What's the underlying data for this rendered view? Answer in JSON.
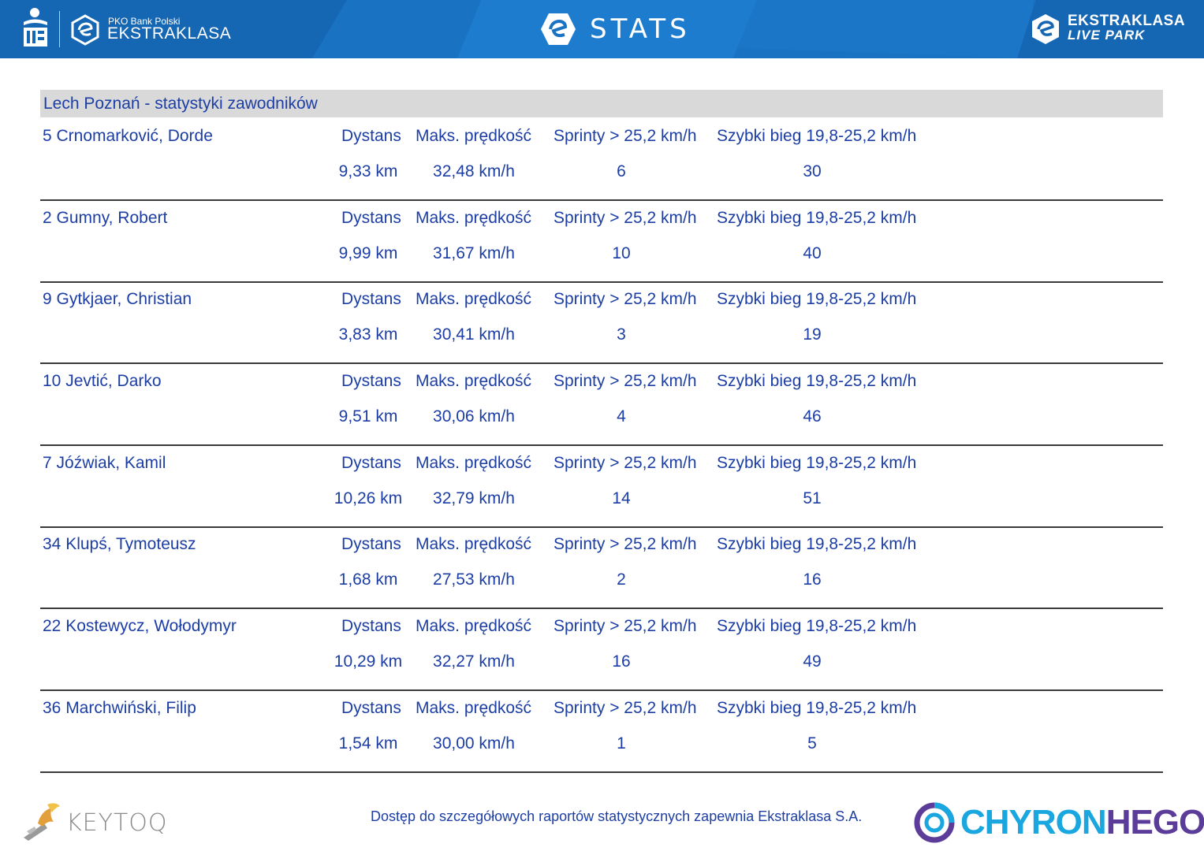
{
  "header": {
    "brand_small": "PKO Bank Polski",
    "brand_big": "EKSTRAKLASA",
    "stats_title": "STATS",
    "live_park_line1": "EKSTRAKLASA",
    "live_park_line2": "LIVE PARK"
  },
  "section_title": "Lech Poznań - statystyki zawodników",
  "column_labels": {
    "distance": "Dystans",
    "max_speed": "Maks. prędkość",
    "sprints": "Sprinty > 25,2 km/h",
    "fast_run": "Szybki bieg 19,8-25,2 km/h"
  },
  "players": [
    {
      "name": "5  Crnomarković, Dorde",
      "distance": "9,33 km",
      "max_speed": "32,48 km/h",
      "sprints": "6",
      "fast_run": "30"
    },
    {
      "name": "2  Gumny, Robert",
      "distance": "9,99 km",
      "max_speed": "31,67 km/h",
      "sprints": "10",
      "fast_run": "40"
    },
    {
      "name": "9  Gytkjaer, Christian",
      "distance": "3,83 km",
      "max_speed": "30,41 km/h",
      "sprints": "3",
      "fast_run": "19"
    },
    {
      "name": "10  Jevtić, Darko",
      "distance": "9,51 km",
      "max_speed": "30,06 km/h",
      "sprints": "4",
      "fast_run": "46"
    },
    {
      "name": "7  Jóźwiak, Kamil",
      "distance": "10,26 km",
      "max_speed": "32,79 km/h",
      "sprints": "14",
      "fast_run": "51"
    },
    {
      "name": "34  Klupś, Tymoteusz",
      "distance": "1,68 km",
      "max_speed": "27,53 km/h",
      "sprints": "2",
      "fast_run": "16"
    },
    {
      "name": "22  Kostewycz, Wołodymyr",
      "distance": "10,29 km",
      "max_speed": "32,27 km/h",
      "sprints": "16",
      "fast_run": "49"
    },
    {
      "name": "36  Marchwiński, Filip",
      "distance": "1,54 km",
      "max_speed": "30,00 km/h",
      "sprints": "1",
      "fast_run": "5"
    }
  ],
  "footer": {
    "keytoq": "KEYTOQ",
    "note": "Dostęp do szczegółowych raportów statystycznych zapewnia Ekstraklasa S.A.",
    "chyron_part1": "CHYRON",
    "chyron_part2": "HEGO"
  },
  "colors": {
    "header_blue": "#1a72c2",
    "text_blue": "#1c3ea5",
    "title_bar_gray": "#d9d9d9",
    "chyron_cyan": "#1aa6df",
    "chyron_purple": "#5b3c99"
  }
}
